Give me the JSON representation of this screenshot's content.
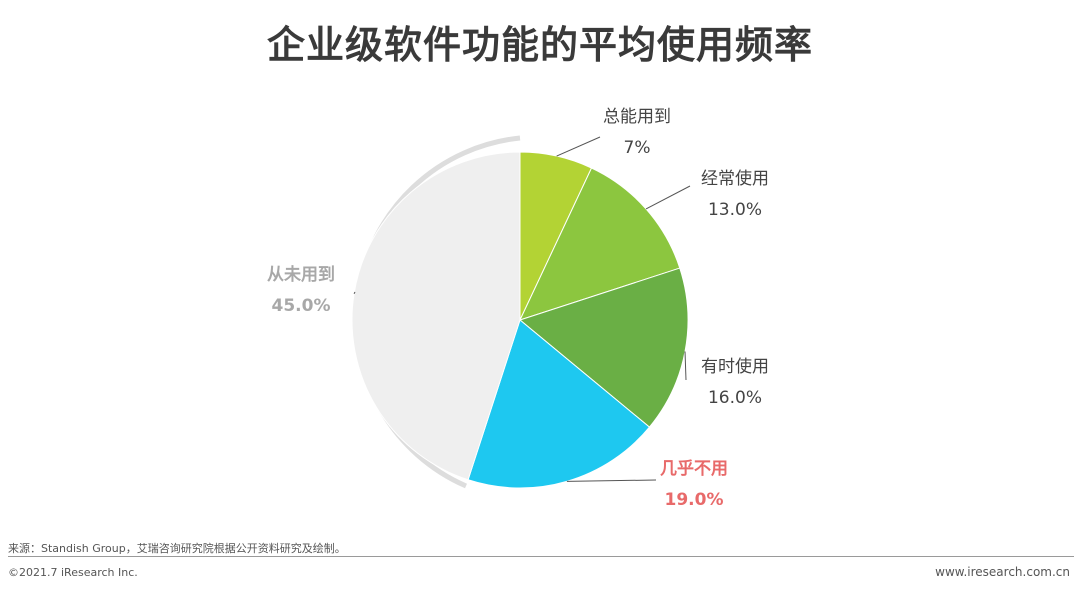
{
  "chart_data": {
    "type": "pie",
    "title": "企业级软件功能的平均使用频率",
    "slices": [
      {
        "label": "总能用到",
        "value": 7,
        "value_label": "7%",
        "color": "#b3d334",
        "label_color": "#444444"
      },
      {
        "label": "经常使用",
        "value": 13.0,
        "value_label": "13.0%",
        "color": "#8cc63f",
        "label_color": "#444444"
      },
      {
        "label": "有时使用",
        "value": 16.0,
        "value_label": "16.0%",
        "color": "#6aaf45",
        "label_color": "#444444"
      },
      {
        "label": "几乎不用",
        "value": 19.0,
        "value_label": "19.0%",
        "color": "#1ec8f0",
        "label_color": "#e86a6a"
      },
      {
        "label": "从未用到",
        "value": 45.0,
        "value_label": "45.0%",
        "color": "#efefef",
        "label_color": "#a8a8a8"
      }
    ],
    "start": "12 o'clock",
    "direction": "clockwise"
  },
  "footer": {
    "source": "来源：Standish Group，艾瑞咨询研究院根据公开资料研究及绘制。",
    "copyright": "©2021.7 iResearch Inc.",
    "site": "www.iresearch.com.cn"
  }
}
